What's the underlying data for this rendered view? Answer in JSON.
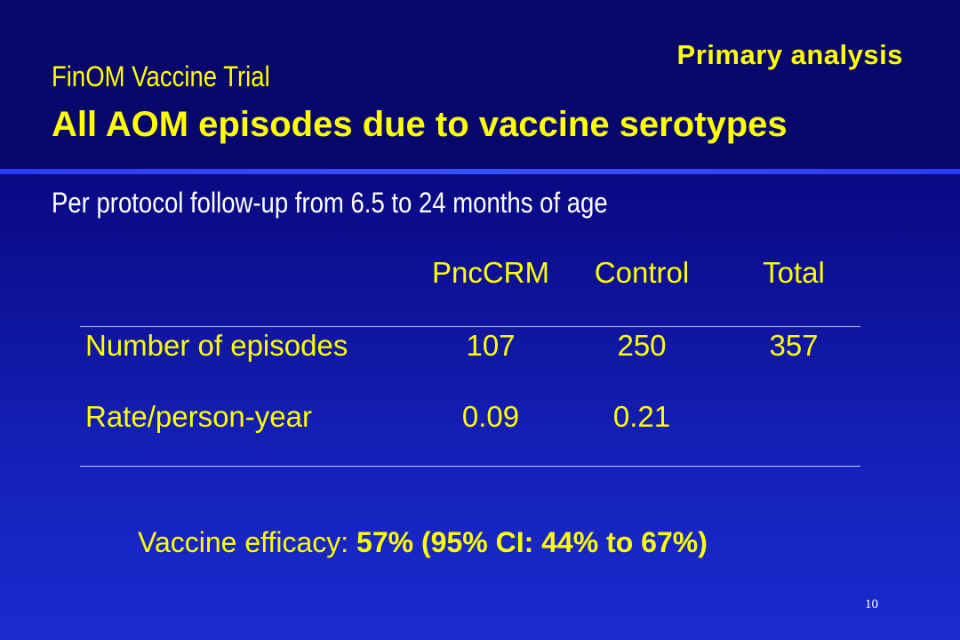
{
  "header": {
    "tag": "Primary analysis",
    "subtitle": "FinOM Vaccine Trial",
    "title": "All AOM episodes due to vaccine serotypes"
  },
  "followup": "Per protocol follow-up from 6.5 to 24 months of age",
  "table": {
    "columns": [
      "PncCRM",
      "Control",
      "Total"
    ],
    "rows": [
      {
        "label": "Number of episodes",
        "values": [
          "107",
          "250",
          "357"
        ]
      },
      {
        "label": "Rate/person-year",
        "values": [
          "0.09",
          "0.21",
          ""
        ]
      }
    ]
  },
  "efficacy": {
    "label": "Vaccine efficacy:",
    "value": "57% (95% CI: 44% to 67%)"
  },
  "page_number": "10",
  "colors": {
    "background": "#0a0a86",
    "accent": "#ffff00",
    "text": "#ffffff"
  }
}
